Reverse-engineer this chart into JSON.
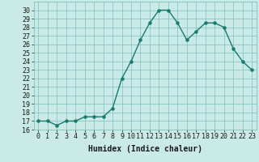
{
  "x": [
    0,
    1,
    2,
    3,
    4,
    5,
    6,
    7,
    8,
    9,
    10,
    11,
    12,
    13,
    14,
    15,
    16,
    17,
    18,
    19,
    20,
    21,
    22,
    23
  ],
  "y": [
    17.0,
    17.0,
    16.5,
    17.0,
    17.0,
    17.5,
    17.5,
    17.5,
    18.5,
    22.0,
    24.0,
    26.5,
    28.5,
    30.0,
    30.0,
    28.5,
    26.5,
    27.5,
    28.5,
    28.5,
    28.0,
    25.5,
    24.0,
    23.0
  ],
  "line_color": "#1a7a6e",
  "marker": "o",
  "marker_size": 2.2,
  "bg_color": "#c9eae7",
  "grid_color": "#80c0bb",
  "xlabel": "Humidex (Indice chaleur)",
  "ylabel": "",
  "xlim": [
    -0.5,
    23.5
  ],
  "ylim": [
    16,
    31
  ],
  "yticks": [
    16,
    17,
    18,
    19,
    20,
    21,
    22,
    23,
    24,
    25,
    26,
    27,
    28,
    29,
    30
  ],
  "xticks": [
    0,
    1,
    2,
    3,
    4,
    5,
    6,
    7,
    8,
    9,
    10,
    11,
    12,
    13,
    14,
    15,
    16,
    17,
    18,
    19,
    20,
    21,
    22,
    23
  ],
  "xlabel_fontsize": 7,
  "tick_fontsize": 6,
  "line_width": 1.0
}
